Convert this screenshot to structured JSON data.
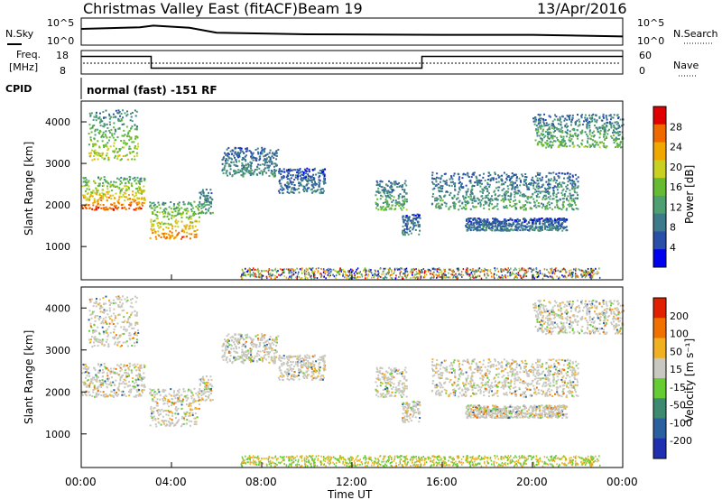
{
  "header": {
    "title": "Christmas Valley East (fitACF)",
    "beam": "Beam 19",
    "date": "13/Apr/2016"
  },
  "noise_panel": {
    "left_label": "N.Sky",
    "right_label": "N.Search",
    "tick_top": "10^5",
    "tick_bottom": "10^0"
  },
  "freq_panel": {
    "left_label_1": "Freq.",
    "left_label_2": "[MHz]",
    "ticks_left": [
      "18",
      "8"
    ],
    "right_label": "Nave",
    "ticks_right": [
      "60",
      "0"
    ]
  },
  "cpid_panel": {
    "label": "CPID",
    "value": "normal (fast) -151 RF"
  },
  "power_panel": {
    "ylabel": "Slant Range [km]",
    "yticks": [
      "4000",
      "3000",
      "2000",
      "1000"
    ],
    "colorbar_label": "Power [dB]",
    "colorbar_ticks": [
      "28",
      "24",
      "20",
      "16",
      "12",
      "8",
      "4"
    ],
    "colors": [
      "#0000ee",
      "#2a4fa8",
      "#3d7a8a",
      "#4fa070",
      "#66bb33",
      "#c8d020",
      "#f0a800",
      "#f06800",
      "#e00000"
    ]
  },
  "velocity_panel": {
    "ylabel": "Slant Range [km]",
    "yticks": [
      "4000",
      "3000",
      "2000",
      "1000"
    ],
    "colorbar_label": "Velocity [m s⁻¹]",
    "colorbar_ticks": [
      "200",
      "100",
      "50",
      "15",
      "-15",
      "-50",
      "-100",
      "-200"
    ],
    "colors": [
      "#1f2fb0",
      "#2a5fa0",
      "#3d8a70",
      "#66cc33",
      "#c8c8c0",
      "#f0b020",
      "#f07000",
      "#e02000"
    ]
  },
  "xaxis": {
    "label": "Time UT",
    "ticks": [
      "00:00",
      "04:00",
      "08:00",
      "12:00",
      "16:00",
      "20:00",
      "00:00"
    ]
  },
  "chart_data": {
    "type": "heatmap",
    "title": "Christmas Valley East (fitACF)",
    "xlabel": "Time UT",
    "ylabel": "Slant Range [km]",
    "xlim": [
      0,
      24
    ],
    "ylim": [
      200,
      4500
    ],
    "power_bands": [
      {
        "t0": 0.0,
        "t1": 2.8,
        "r0": 1900,
        "r1": 2700,
        "peak": 26
      },
      {
        "t0": 0.3,
        "t1": 2.5,
        "r0": 3100,
        "r1": 4300,
        "peak": 18
      },
      {
        "t0": 3.0,
        "t1": 5.2,
        "r0": 1200,
        "r1": 2100,
        "peak": 24
      },
      {
        "t0": 5.2,
        "t1": 5.8,
        "r0": 1800,
        "r1": 2400,
        "peak": 12
      },
      {
        "t0": 6.2,
        "t1": 8.7,
        "r0": 2700,
        "r1": 3400,
        "peak": 10
      },
      {
        "t0": 8.7,
        "t1": 10.8,
        "r0": 2300,
        "r1": 2900,
        "peak": 8
      },
      {
        "t0": 13.0,
        "t1": 14.4,
        "r0": 1900,
        "r1": 2600,
        "peak": 13
      },
      {
        "t0": 14.2,
        "t1": 15.0,
        "r0": 1300,
        "r1": 1800,
        "peak": 9
      },
      {
        "t0": 15.5,
        "t1": 22.0,
        "r0": 1900,
        "r1": 2800,
        "peak": 12
      },
      {
        "t0": 17.0,
        "t1": 21.5,
        "r0": 1400,
        "r1": 1700,
        "peak": 8
      },
      {
        "t0": 20.0,
        "t1": 24.0,
        "r0": 3400,
        "r1": 4200,
        "peak": 14
      }
    ],
    "noise_sky": [
      {
        "t": 0.0,
        "v": 3.0
      },
      {
        "t": 2.6,
        "v": 3.3
      },
      {
        "t": 3.2,
        "v": 3.6
      },
      {
        "t": 4.8,
        "v": 3.2
      },
      {
        "t": 6.0,
        "v": 2.3
      },
      {
        "t": 10.0,
        "v": 2.0
      },
      {
        "t": 16.0,
        "v": 1.9
      },
      {
        "t": 20.0,
        "v": 1.9
      },
      {
        "t": 24.0,
        "v": 1.6
      }
    ],
    "frequency": [
      {
        "t": 0.0,
        "mhz": 15.5
      },
      {
        "t": 3.1,
        "mhz": 15.5
      },
      {
        "t": 3.1,
        "mhz": 10.5
      },
      {
        "t": 15.1,
        "mhz": 10.5
      },
      {
        "t": 15.1,
        "mhz": 15.5
      },
      {
        "t": 24.0,
        "mhz": 15.5
      }
    ]
  }
}
